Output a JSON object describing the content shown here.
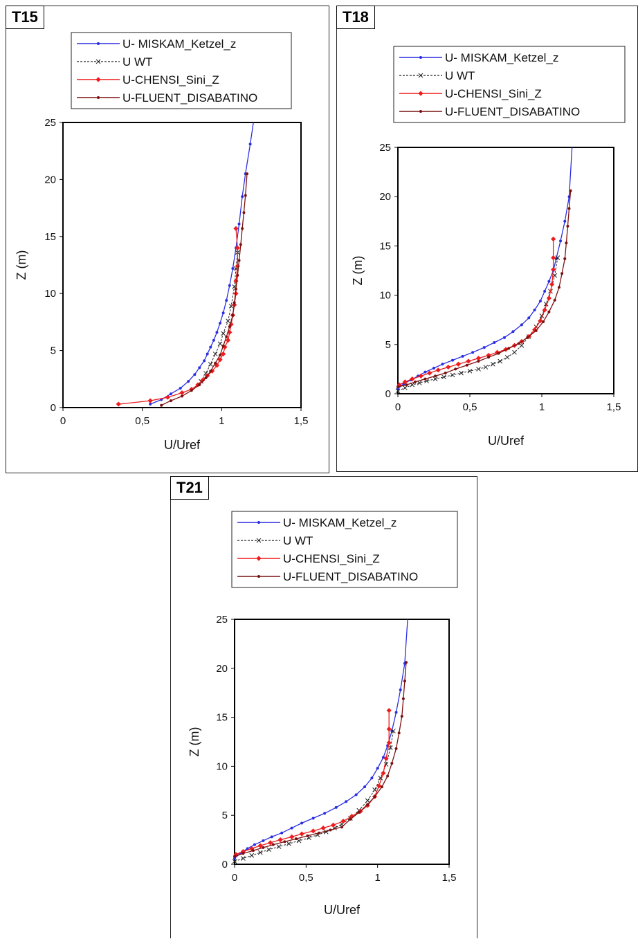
{
  "legend": [
    {
      "name": "U- MISKAM_Ketzel_z",
      "color": "#2a2ee0",
      "marker": "dot"
    },
    {
      "name": "U WT",
      "color": "#222222",
      "marker": "x",
      "dashed": true
    },
    {
      "name": "U-CHENSI_Sini_Z",
      "color": "#ee1c1c",
      "marker": "diamond"
    },
    {
      "name": "U-FLUENT_DISABATINO",
      "color": "#7a1010",
      "marker": "dot"
    }
  ],
  "chart_data": [
    {
      "type": "line",
      "panel_title": "T15",
      "xlabel": "U/Uref",
      "ylabel": "Z (m)",
      "xlim": [
        0,
        1.5
      ],
      "ylim": [
        0,
        25
      ],
      "xticks": [
        "0",
        "0,5",
        "1",
        "1,5"
      ],
      "yticks": [
        "0",
        "5",
        "10",
        "15",
        "20",
        "25"
      ],
      "series": [
        {
          "name": "U- MISKAM_Ketzel_z",
          "x": [
            0.55,
            0.62,
            0.68,
            0.74,
            0.79,
            0.83,
            0.86,
            0.89,
            0.91,
            0.93,
            0.95,
            0.97,
            0.99,
            1.01,
            1.03,
            1.05,
            1.07,
            1.09,
            1.11,
            1.13,
            1.15,
            1.18,
            1.2
          ],
          "y": [
            0.3,
            0.7,
            1.2,
            1.7,
            2.3,
            2.9,
            3.5,
            4.1,
            4.7,
            5.3,
            5.9,
            6.6,
            7.4,
            8.3,
            9.4,
            10.7,
            12.2,
            14.0,
            16.1,
            18.5,
            20.5,
            23.1,
            25
          ]
        },
        {
          "name": "U WT",
          "x": [
            0.87,
            0.9,
            0.93,
            0.96,
            0.99,
            1.01,
            1.04,
            1.06,
            1.08,
            1.09,
            1.1
          ],
          "y": [
            2.3,
            3.0,
            3.8,
            4.7,
            5.6,
            6.5,
            7.6,
            8.9,
            10.6,
            12.2,
            13.6
          ]
        },
        {
          "name": "U-CHENSI_Sini_Z",
          "x": [
            0.35,
            0.55,
            0.66,
            0.75,
            0.81,
            0.85,
            0.88,
            0.91,
            0.94,
            0.97,
            0.99,
            1.01,
            1.02,
            1.04,
            1.05,
            1.06,
            1.07,
            1.08,
            1.09,
            1.09,
            1.1,
            1.1,
            1.09
          ],
          "y": [
            0.3,
            0.6,
            0.9,
            1.3,
            1.6,
            2.0,
            2.4,
            2.8,
            3.2,
            3.7,
            4.2,
            4.7,
            5.3,
            5.9,
            6.6,
            7.3,
            8.1,
            9.0,
            10.0,
            11.1,
            12.4,
            14.0,
            15.7
          ]
        },
        {
          "name": "U-FLUENT_DISABATINO",
          "x": [
            0.62,
            0.68,
            0.75,
            0.81,
            0.86,
            0.9,
            0.93,
            0.96,
            0.99,
            1.01,
            1.03,
            1.05,
            1.07,
            1.08,
            1.09,
            1.1,
            1.11,
            1.12,
            1.13,
            1.14,
            1.15,
            1.16
          ],
          "y": [
            0.2,
            0.6,
            1.0,
            1.5,
            2.0,
            2.6,
            3.2,
            3.9,
            4.6,
            5.4,
            6.2,
            7.1,
            8.1,
            9.2,
            10.4,
            11.6,
            12.9,
            14.3,
            15.7,
            17.1,
            18.6,
            20.5
          ]
        }
      ]
    },
    {
      "type": "line",
      "panel_title": "T18",
      "xlabel": "U/Uref",
      "ylabel": "Z (m)",
      "xlim": [
        0,
        1.5
      ],
      "ylim": [
        0,
        25
      ],
      "xticks": [
        "0",
        "0,5",
        "1",
        "1,5"
      ],
      "yticks": [
        "0",
        "5",
        "10",
        "15",
        "20",
        "25"
      ],
      "series": [
        {
          "name": "U- MISKAM_Ketzel_z",
          "x": [
            0.0,
            0.04,
            0.09,
            0.14,
            0.19,
            0.25,
            0.31,
            0.38,
            0.45,
            0.52,
            0.6,
            0.67,
            0.74,
            0.8,
            0.86,
            0.91,
            0.95,
            0.99,
            1.02,
            1.05,
            1.08,
            1.1,
            1.13,
            1.16,
            1.19,
            1.21
          ],
          "y": [
            0.5,
            1.0,
            1.4,
            1.8,
            2.2,
            2.6,
            3.0,
            3.4,
            3.8,
            4.2,
            4.7,
            5.2,
            5.7,
            6.3,
            7.0,
            7.7,
            8.5,
            9.4,
            10.4,
            11.4,
            12.5,
            13.7,
            15.5,
            17.5,
            20.0,
            25
          ]
        },
        {
          "name": "U WT",
          "x": [
            0.0,
            0.05,
            0.1,
            0.15,
            0.2,
            0.26,
            0.32,
            0.38,
            0.44,
            0.5,
            0.56,
            0.61,
            0.66,
            0.71,
            0.76,
            0.81,
            0.86,
            0.91,
            0.96,
            1.0,
            1.03,
            1.06,
            1.09,
            1.11
          ],
          "y": [
            0.3,
            0.6,
            0.9,
            1.1,
            1.3,
            1.5,
            1.7,
            1.9,
            2.1,
            2.3,
            2.5,
            2.7,
            3.0,
            3.3,
            3.7,
            4.2,
            4.9,
            5.8,
            6.8,
            7.9,
            9.1,
            10.4,
            12.0,
            13.8
          ]
        },
        {
          "name": "U-CHENSI_Sini_Z",
          "x": [
            0.01,
            0.05,
            0.1,
            0.16,
            0.22,
            0.28,
            0.35,
            0.42,
            0.49,
            0.56,
            0.63,
            0.69,
            0.75,
            0.81,
            0.86,
            0.91,
            0.95,
            0.99,
            1.02,
            1.05,
            1.07,
            1.08,
            1.08,
            1.08
          ],
          "y": [
            0.9,
            1.2,
            1.5,
            1.8,
            2.1,
            2.4,
            2.7,
            3.0,
            3.3,
            3.6,
            3.9,
            4.2,
            4.5,
            4.9,
            5.3,
            5.8,
            6.5,
            7.4,
            8.5,
            9.7,
            11.1,
            12.6,
            13.8,
            15.7
          ]
        },
        {
          "name": "U-FLUENT_DISABATINO",
          "x": [
            0.0,
            0.06,
            0.12,
            0.19,
            0.26,
            0.33,
            0.4,
            0.48,
            0.56,
            0.63,
            0.7,
            0.77,
            0.84,
            0.9,
            0.96,
            1.01,
            1.05,
            1.09,
            1.12,
            1.14,
            1.16,
            1.17,
            1.18,
            1.19,
            1.2
          ],
          "y": [
            0.7,
            0.9,
            1.2,
            1.5,
            1.8,
            2.1,
            2.5,
            2.9,
            3.3,
            3.7,
            4.1,
            4.6,
            5.1,
            5.7,
            6.4,
            7.3,
            8.3,
            9.5,
            10.8,
            12.2,
            13.7,
            15.3,
            17.0,
            18.8,
            20.6
          ]
        }
      ]
    },
    {
      "type": "line",
      "panel_title": "T21",
      "xlabel": "U/Uref",
      "ylabel": "Z (m)",
      "xlim": [
        0,
        1.5
      ],
      "ylim": [
        0,
        25
      ],
      "xticks": [
        "0",
        "0,5",
        "1",
        "1,5"
      ],
      "yticks": [
        "0",
        "5",
        "10",
        "15",
        "20",
        "25"
      ],
      "series": [
        {
          "name": "U- MISKAM_Ketzel_z",
          "x": [
            0.0,
            0.04,
            0.09,
            0.14,
            0.2,
            0.26,
            0.33,
            0.4,
            0.47,
            0.55,
            0.63,
            0.71,
            0.78,
            0.85,
            0.91,
            0.96,
            1.0,
            1.04,
            1.07,
            1.1,
            1.13,
            1.16,
            1.19,
            1.21
          ],
          "y": [
            0.6,
            1.1,
            1.6,
            2.0,
            2.4,
            2.8,
            3.2,
            3.7,
            4.2,
            4.7,
            5.2,
            5.8,
            6.4,
            7.1,
            7.9,
            8.8,
            9.8,
            10.9,
            12.1,
            13.6,
            15.5,
            17.8,
            20.5,
            25
          ]
        },
        {
          "name": "U WT",
          "x": [
            0.0,
            0.06,
            0.12,
            0.18,
            0.24,
            0.31,
            0.38,
            0.45,
            0.52,
            0.58,
            0.64,
            0.7,
            0.75,
            0.81,
            0.87,
            0.93,
            0.98,
            1.02,
            1.06,
            1.09,
            1.11
          ],
          "y": [
            0.3,
            0.6,
            0.9,
            1.2,
            1.5,
            1.8,
            2.1,
            2.4,
            2.7,
            3.0,
            3.3,
            3.7,
            4.1,
            4.7,
            5.5,
            6.5,
            7.6,
            8.8,
            10.2,
            11.9,
            13.6
          ]
        },
        {
          "name": "U-CHENSI_Sini_Z",
          "x": [
            0.01,
            0.06,
            0.12,
            0.18,
            0.25,
            0.32,
            0.4,
            0.47,
            0.55,
            0.62,
            0.69,
            0.76,
            0.82,
            0.88,
            0.93,
            0.98,
            1.01,
            1.04,
            1.06,
            1.08,
            1.08,
            1.08
          ],
          "y": [
            1.0,
            1.3,
            1.6,
            1.9,
            2.2,
            2.5,
            2.8,
            3.1,
            3.4,
            3.7,
            4.0,
            4.4,
            4.9,
            5.4,
            6.0,
            6.9,
            8.0,
            9.3,
            10.8,
            12.4,
            13.8,
            15.7
          ]
        },
        {
          "name": "U-FLUENT_DISABATINO",
          "x": [
            0.0,
            0.06,
            0.13,
            0.2,
            0.27,
            0.35,
            0.43,
            0.51,
            0.59,
            0.67,
            0.75,
            0.81,
            0.87,
            0.93,
            0.98,
            1.03,
            1.07,
            1.1,
            1.13,
            1.15,
            1.17,
            1.18,
            1.19,
            1.2
          ],
          "y": [
            0.8,
            1.1,
            1.4,
            1.7,
            2.0,
            2.3,
            2.6,
            2.9,
            3.2,
            3.5,
            3.8,
            4.6,
            5.3,
            6.1,
            6.9,
            7.9,
            9.0,
            10.3,
            11.8,
            13.4,
            15.1,
            16.9,
            18.7,
            20.6
          ]
        }
      ]
    }
  ]
}
